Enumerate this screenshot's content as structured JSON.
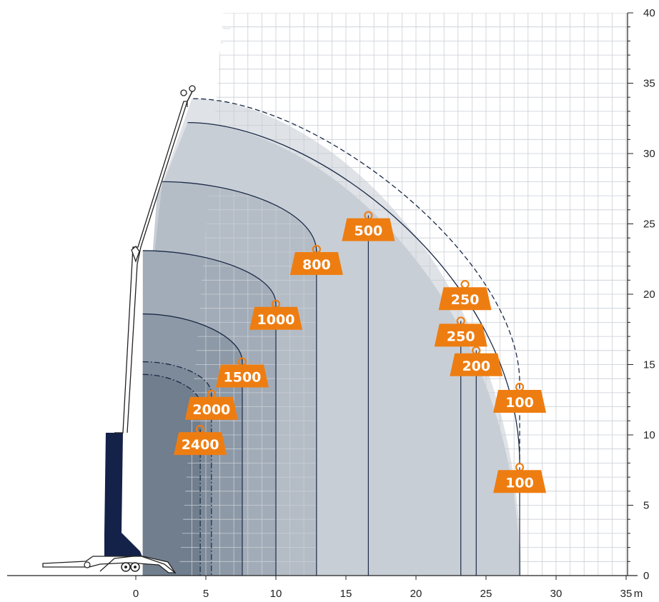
{
  "chart_data": {
    "type": "area",
    "title": "",
    "xlabel": "",
    "x_unit": "m",
    "ylabel": "",
    "xlim": [
      -9.5,
      35.5
    ],
    "ylim": [
      0,
      40
    ],
    "x_ticks": [
      0,
      5,
      10,
      15,
      20,
      25,
      30,
      35
    ],
    "y_ticks": [
      0,
      5,
      10,
      15,
      20,
      25,
      30,
      35,
      40
    ],
    "grid": true,
    "colors": {
      "zone_2400": "#707e8e",
      "zone_2000": "#7d8a99",
      "zone_1500": "#8d99a7",
      "zone_1000": "#a2acb8",
      "zone_800": "#b4bcc6",
      "zone_500": "#c8ced6",
      "zone_outer": "#dfe2e6",
      "curve": "#1b2a47",
      "weight": "#ee7d11",
      "boom_base": "#14224a"
    },
    "load_zones": [
      {
        "label": "2400",
        "unit": "kg",
        "max_radius": 4.6,
        "height": 14.3,
        "label_at": [
          4.6,
          10.4
        ],
        "style": "dash-dot"
      },
      {
        "label": "2000",
        "unit": "kg",
        "max_radius": 5.4,
        "height": 15.2,
        "label_at": [
          5.4,
          12.9
        ],
        "style": "dash-dot"
      },
      {
        "label": "1500",
        "unit": "kg",
        "max_radius": 7.6,
        "height": 18.6,
        "label_at": [
          7.6,
          15.2
        ],
        "style": "solid"
      },
      {
        "label": "1000",
        "unit": "kg",
        "max_radius": 10.0,
        "height": 23.1,
        "label_at": [
          10.0,
          19.3
        ],
        "style": "solid"
      },
      {
        "label": "800",
        "unit": "kg",
        "max_radius": 12.9,
        "height": 28.0,
        "label_at": [
          12.9,
          23.2
        ],
        "style": "solid"
      },
      {
        "label": "500",
        "unit": "kg",
        "max_radius": 16.6,
        "height": 32.2,
        "label_at": [
          16.6,
          25.6
        ],
        "style": "solid"
      },
      {
        "label": "250",
        "unit": "kg",
        "max_radius": 23.2,
        "height": 32.2,
        "label_at": [
          23.2,
          18.1
        ],
        "style": "solid"
      },
      {
        "label": "250",
        "unit": "kg",
        "max_radius": 23.2,
        "height": 33.9,
        "label_at": [
          23.5,
          20.7
        ],
        "style": "dashed"
      },
      {
        "label": "200",
        "unit": "kg",
        "max_radius": 24.3,
        "height": 32.2,
        "label_at": [
          24.3,
          16.0
        ],
        "style": "solid"
      },
      {
        "label": "100",
        "unit": "kg",
        "max_radius": 27.4,
        "height": 32.2,
        "label_at": [
          27.4,
          7.7
        ],
        "style": "solid"
      },
      {
        "label": "100",
        "unit": "kg",
        "max_radius": 27.4,
        "height": 33.9,
        "label_at": [
          27.4,
          13.4
        ],
        "style": "dashed"
      }
    ]
  }
}
